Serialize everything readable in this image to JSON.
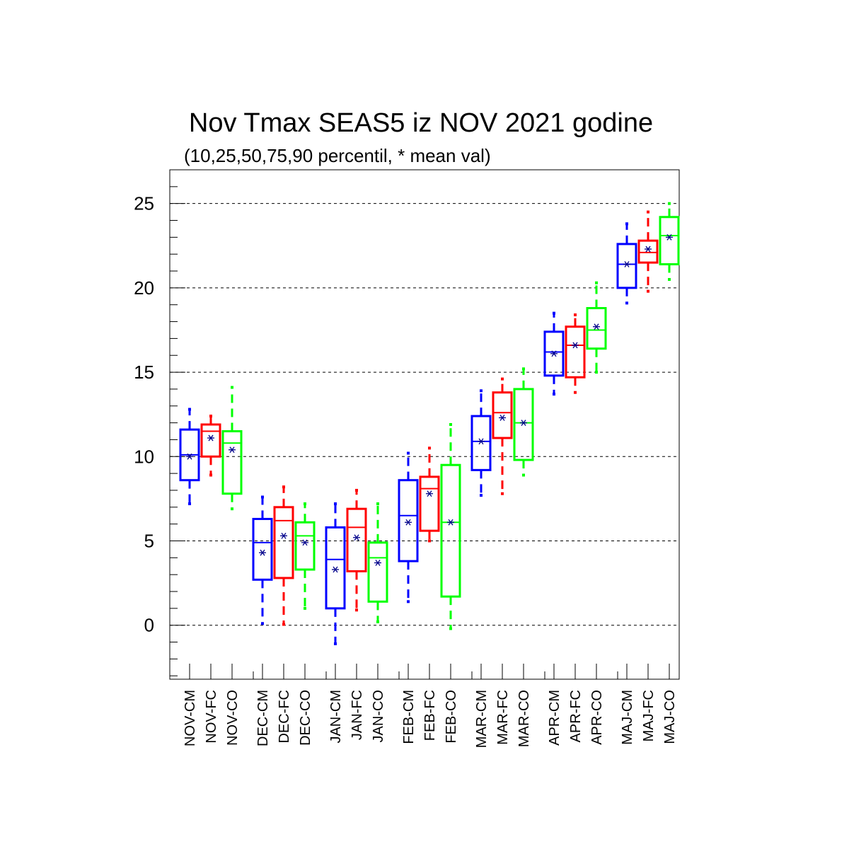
{
  "chart_data": {
    "type": "boxplot",
    "title": "Nov Tmax SEAS5 iz NOV 2021 godine",
    "subtitle": "(10,25,50,75,90 percentil, * mean val)",
    "ylim": [
      -3.2,
      27
    ],
    "yticks": [
      0,
      5,
      10,
      15,
      20,
      25
    ],
    "grid": "horizontal dashed",
    "colors": {
      "CM": "#0000ff",
      "FC": "#ff0000",
      "CO": "#00ff00",
      "mean_marker": "#00008b"
    },
    "boxes": [
      {
        "label": "NOV-CM",
        "type": "CM",
        "p10": 7.2,
        "p25": 8.6,
        "p50": 10.1,
        "p75": 11.6,
        "p90": 12.8,
        "mean": 10.0
      },
      {
        "label": "NOV-FC",
        "type": "FC",
        "p10": 8.9,
        "p25": 10.0,
        "p50": 11.5,
        "p75": 11.9,
        "p90": 12.4,
        "mean": 11.1
      },
      {
        "label": "NOV-CO",
        "type": "CO",
        "p10": 6.9,
        "p25": 7.8,
        "p50": 10.8,
        "p75": 11.5,
        "p90": 14.1,
        "mean": 10.4
      },
      {
        "label": "DEC-CM",
        "type": "CM",
        "p10": 0.1,
        "p25": 2.7,
        "p50": 4.9,
        "p75": 6.3,
        "p90": 7.6,
        "mean": 4.3
      },
      {
        "label": "DEC-FC",
        "type": "FC",
        "p10": 0.05,
        "p25": 2.8,
        "p50": 6.2,
        "p75": 7.0,
        "p90": 8.2,
        "mean": 5.3
      },
      {
        "label": "DEC-CO",
        "type": "CO",
        "p10": 1.0,
        "p25": 3.3,
        "p50": 5.3,
        "p75": 6.1,
        "p90": 7.2,
        "mean": 4.9
      },
      {
        "label": "JAN-CM",
        "type": "CM",
        "p10": -1.1,
        "p25": 1.0,
        "p50": 3.9,
        "p75": 5.8,
        "p90": 7.2,
        "mean": 3.3
      },
      {
        "label": "JAN-FC",
        "type": "FC",
        "p10": 0.9,
        "p25": 3.2,
        "p50": 5.8,
        "p75": 6.9,
        "p90": 8.0,
        "mean": 5.2
      },
      {
        "label": "JAN-CO",
        "type": "CO",
        "p10": 0.2,
        "p25": 1.4,
        "p50": 4.0,
        "p75": 4.9,
        "p90": 7.2,
        "mean": 3.7
      },
      {
        "label": "FEB-CM",
        "type": "CM",
        "p10": 1.4,
        "p25": 3.8,
        "p50": 6.5,
        "p75": 8.6,
        "p90": 10.2,
        "mean": 6.1
      },
      {
        "label": "FEB-FC",
        "type": "FC",
        "p10": 5.0,
        "p25": 5.6,
        "p50": 8.1,
        "p75": 8.8,
        "p90": 10.5,
        "mean": 7.8
      },
      {
        "label": "FEB-CO",
        "type": "CO",
        "p10": -0.2,
        "p25": 1.7,
        "p50": 6.1,
        "p75": 9.5,
        "p90": 11.9,
        "mean": 6.1
      },
      {
        "label": "MAR-CM",
        "type": "CM",
        "p10": 7.7,
        "p25": 9.2,
        "p50": 10.9,
        "p75": 12.4,
        "p90": 13.9,
        "mean": 10.9
      },
      {
        "label": "MAR-FC",
        "type": "FC",
        "p10": 7.8,
        "p25": 11.1,
        "p50": 12.6,
        "p75": 13.8,
        "p90": 14.6,
        "mean": 12.3
      },
      {
        "label": "MAR-CO",
        "type": "CO",
        "p10": 8.9,
        "p25": 9.8,
        "p50": 12.0,
        "p75": 14.0,
        "p90": 15.2,
        "mean": 12.0
      },
      {
        "label": "APR-CM",
        "type": "CM",
        "p10": 13.7,
        "p25": 14.8,
        "p50": 16.2,
        "p75": 17.4,
        "p90": 18.5,
        "mean": 16.1
      },
      {
        "label": "APR-FC",
        "type": "FC",
        "p10": 13.8,
        "p25": 14.7,
        "p50": 16.6,
        "p75": 17.7,
        "p90": 18.4,
        "mean": 16.6
      },
      {
        "label": "APR-CO",
        "type": "CO",
        "p10": 15.0,
        "p25": 16.4,
        "p50": 17.5,
        "p75": 18.8,
        "p90": 20.3,
        "mean": 17.7
      },
      {
        "label": "MAJ-CM",
        "type": "CM",
        "p10": 19.1,
        "p25": 20.0,
        "p50": 21.4,
        "p75": 22.6,
        "p90": 23.8,
        "mean": 21.4
      },
      {
        "label": "MAJ-FC",
        "type": "FC",
        "p10": 19.8,
        "p25": 21.5,
        "p50": 22.1,
        "p75": 22.8,
        "p90": 24.5,
        "mean": 22.3
      },
      {
        "label": "MAJ-CO",
        "type": "CO",
        "p10": 20.5,
        "p25": 21.4,
        "p50": 23.1,
        "p75": 24.2,
        "p90": 25.0,
        "mean": 23.0
      }
    ]
  }
}
